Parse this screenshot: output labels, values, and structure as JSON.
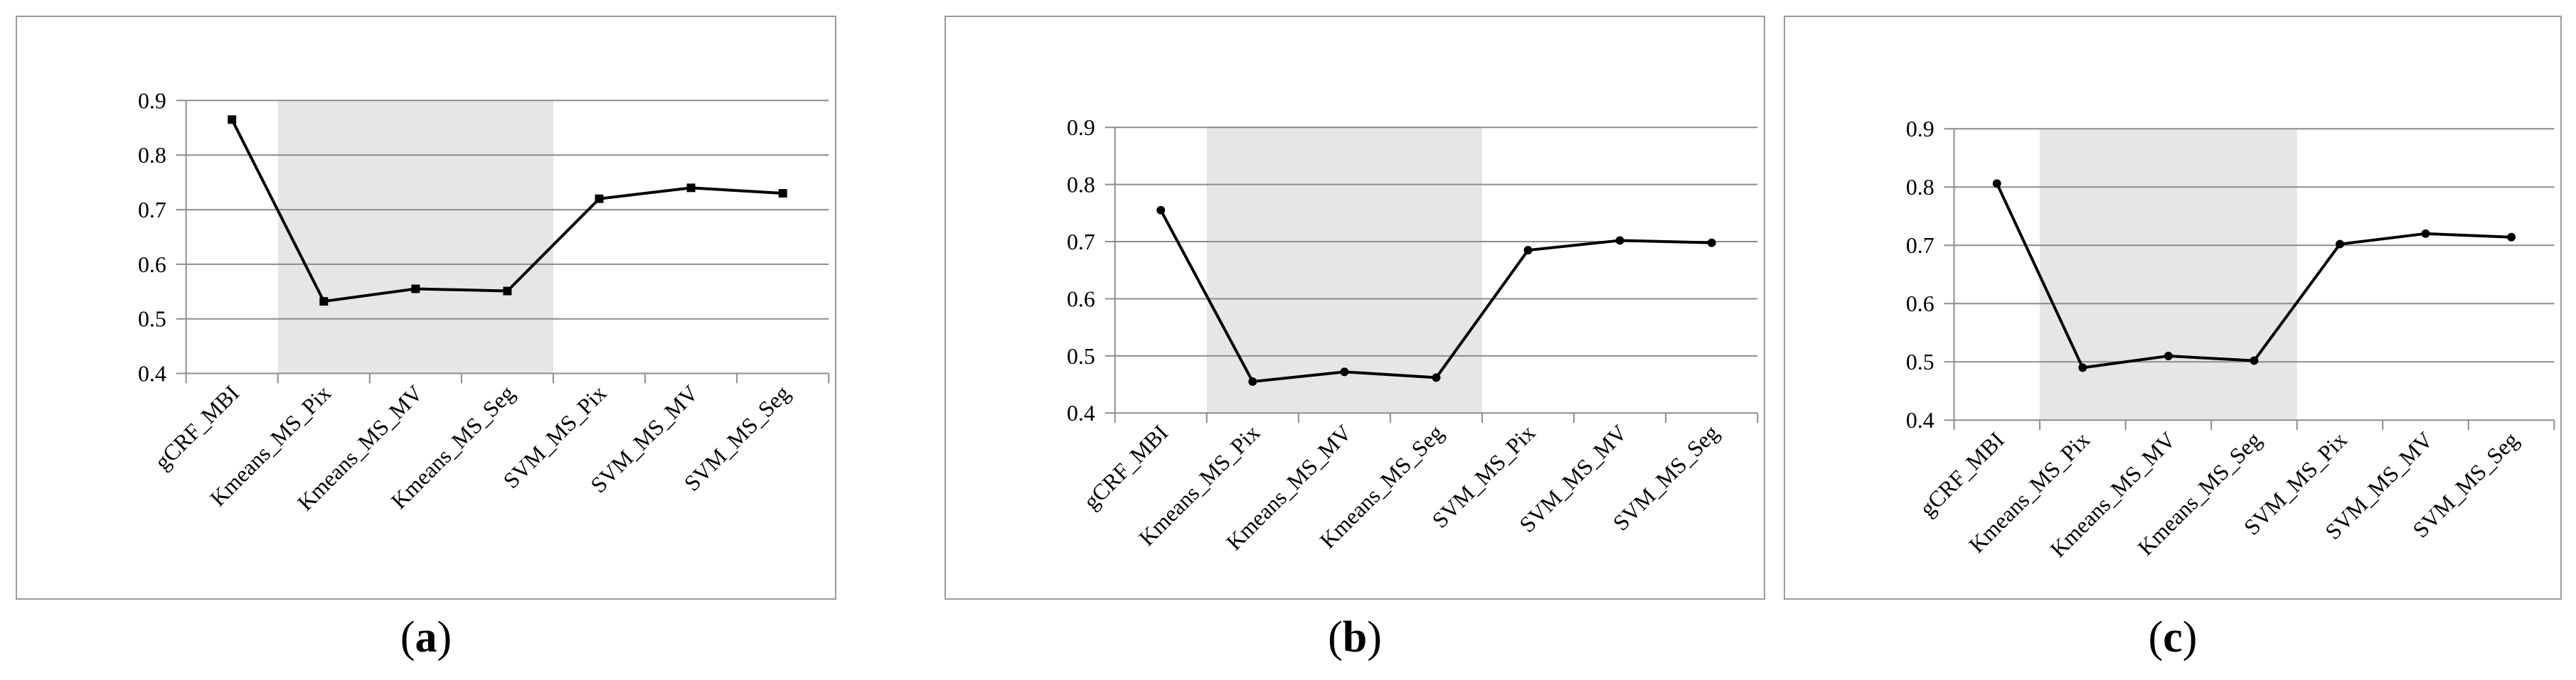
{
  "chart_data": [
    {
      "type": "line",
      "caption": "a",
      "categories": [
        "gCRF_MBI",
        "Kmeans_MS_Pix",
        "Kmeans_MS_MV",
        "Kmeans_MS_Seg",
        "SVM_MS_Pix",
        "SVM_MS_MV",
        "SVM_MS_Seg"
      ],
      "values": [
        0.865,
        0.532,
        0.555,
        0.551,
        0.72,
        0.74,
        0.73
      ],
      "ylim": [
        0.4,
        0.9
      ],
      "yticks": [
        "0.4",
        "0.5",
        "0.6",
        "0.7",
        "0.8",
        "0.9"
      ],
      "grid": true,
      "highlighted_categories": [
        "Kmeans_MS_Pix",
        "Kmeans_MS_MV",
        "Kmeans_MS_Seg"
      ],
      "colors": {
        "line": "#000000",
        "highlight": "#e6e6e6",
        "grid": "#8c8c8c"
      }
    },
    {
      "type": "line",
      "caption": "b",
      "categories": [
        "gCRF_MBI",
        "Kmeans_MS_Pix",
        "Kmeans_MS_MV",
        "Kmeans_MS_Seg",
        "SVM_MS_Pix",
        "SVM_MS_MV",
        "SVM_MS_Seg"
      ],
      "values": [
        0.755,
        0.455,
        0.472,
        0.462,
        0.685,
        0.702,
        0.698
      ],
      "ylim": [
        0.4,
        0.9
      ],
      "yticks": [
        "0.4",
        "0.5",
        "0.6",
        "0.7",
        "0.8",
        "0.9"
      ],
      "grid": true,
      "highlighted_categories": [
        "Kmeans_MS_Pix",
        "Kmeans_MS_MV",
        "Kmeans_MS_Seg"
      ],
      "colors": {
        "line": "#000000",
        "highlight": "#e6e6e6",
        "grid": "#8c8c8c"
      }
    },
    {
      "type": "line",
      "caption": "c",
      "categories": [
        "gCRF_MBI",
        "Kmeans_MS_Pix",
        "Kmeans_MS_MV",
        "Kmeans_MS_Seg",
        "SVM_MS_Pix",
        "SVM_MS_MV",
        "SVM_MS_Seg"
      ],
      "values": [
        0.806,
        0.49,
        0.51,
        0.502,
        0.702,
        0.72,
        0.714
      ],
      "ylim": [
        0.4,
        0.9
      ],
      "yticks": [
        "0.4",
        "0.5",
        "0.6",
        "0.7",
        "0.8",
        "0.9"
      ],
      "grid": true,
      "highlighted_categories": [
        "Kmeans_MS_Pix",
        "Kmeans_MS_MV",
        "Kmeans_MS_Seg"
      ],
      "colors": {
        "line": "#000000",
        "highlight": "#e6e6e6",
        "grid": "#8c8c8c"
      }
    }
  ]
}
